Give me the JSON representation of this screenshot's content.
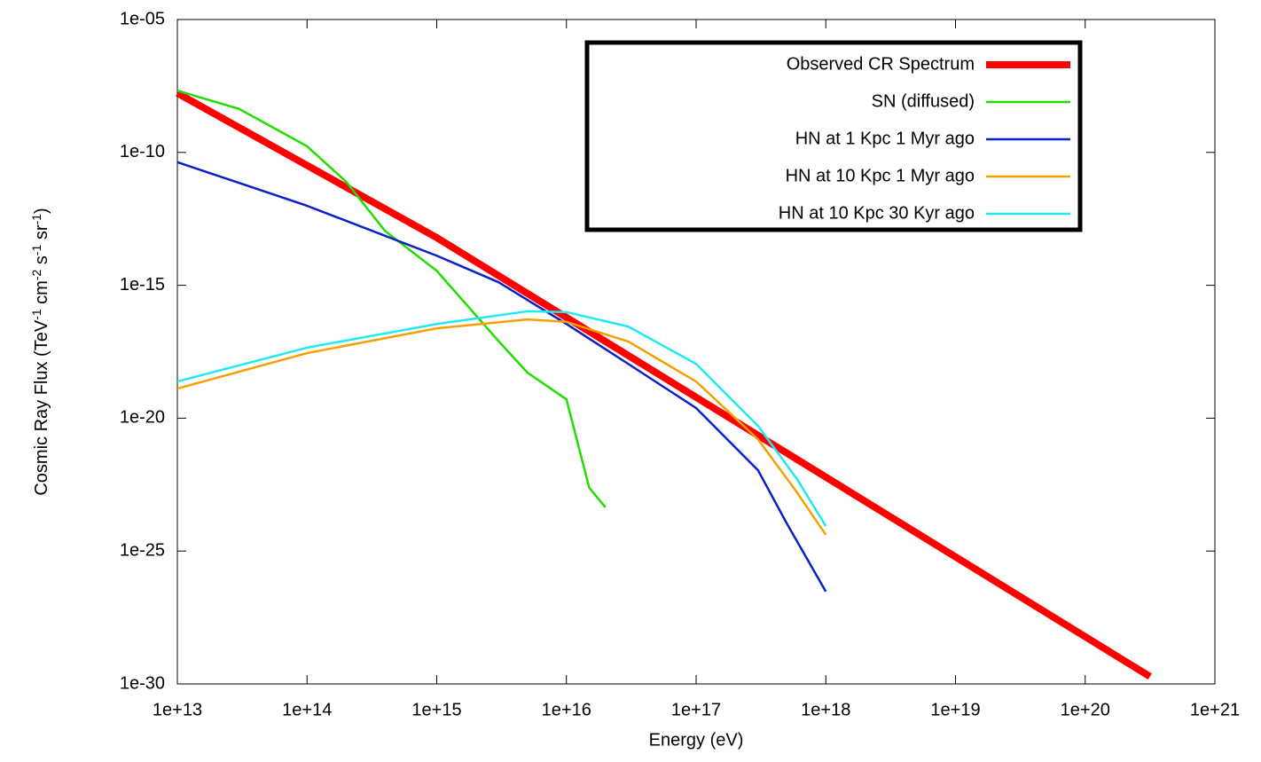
{
  "chart_data": {
    "type": "line",
    "xlabel": "Energy (eV)",
    "ylabel": [
      "Cosmic Ray Flux (TeV",
      "-1",
      " cm",
      "-2",
      " s",
      "-1",
      " sr",
      "-1",
      ")"
    ],
    "xscale": "log",
    "yscale": "log",
    "xlim": [
      10000000000000.0,
      1e+21
    ],
    "ylim": [
      1e-30,
      1e-05
    ],
    "xticks": [
      {
        "value": 10000000000000.0,
        "label": "1e+13"
      },
      {
        "value": 100000000000000.0,
        "label": "1e+14"
      },
      {
        "value": 1000000000000000.0,
        "label": "1e+15"
      },
      {
        "value": 1e+16,
        "label": "1e+16"
      },
      {
        "value": 1e+17,
        "label": "1e+17"
      },
      {
        "value": 1e+18,
        "label": "1e+18"
      },
      {
        "value": 1e+19,
        "label": "1e+19"
      },
      {
        "value": 1e+20,
        "label": "1e+20"
      },
      {
        "value": 1e+21,
        "label": "1e+21"
      }
    ],
    "yticks": [
      {
        "value": 1e-30,
        "label": "1e-30"
      },
      {
        "value": 1e-25,
        "label": "1e-25"
      },
      {
        "value": 1e-20,
        "label": "1e-20"
      },
      {
        "value": 1e-15,
        "label": "1e-15"
      },
      {
        "value": 1e-10,
        "label": "1e-10"
      },
      {
        "value": 1e-05,
        "label": "1e-05"
      }
    ],
    "legend": "top right",
    "series": [
      {
        "name": "Observed CR Spectrum",
        "color": "#ff0000",
        "width": 8,
        "x": [
          10000000000000.0,
          1000000000000000.0,
          3.16e+20
        ],
        "values": [
          1.7e-08,
          6.2e-14,
          1.9e-30
        ]
      },
      {
        "name": "SN (diffused)",
        "color": "#22dd00",
        "width": 2.5,
        "x": [
          10000000000000.0,
          30000000000000.0,
          100000000000000.0,
          200000000000000.0,
          400000000000000.0,
          1000000000000000.0,
          3000000000000000.0,
          5000000000000000.0,
          1e+16,
          1.5e+16,
          2e+16
        ],
        "values": [
          2.1e-08,
          4.3e-09,
          1.7e-10,
          7.9e-12,
          1.1e-13,
          3.5e-15,
          7.9e-18,
          5.2e-19,
          5.1e-20,
          2.4e-23,
          4.4e-24
        ]
      },
      {
        "name": "HN at 1 Kpc 1 Myr ago",
        "color": "#0a1fc8",
        "width": 2.5,
        "x": [
          10000000000000.0,
          100000000000000.0,
          1000000000000000.0,
          3000000000000000.0,
          1e+16,
          3e+16,
          1e+17,
          3e+17,
          5e+17,
          1e+18
        ],
        "values": [
          4.3e-11,
          9.8e-13,
          1.3e-14,
          1.3e-15,
          3.5e-17,
          1.1e-18,
          2.4e-20,
          1.1e-22,
          1.1e-24,
          3e-27
        ]
      },
      {
        "name": "HN at 10 Kpc 1 Myr ago",
        "color": "#f5a000",
        "width": 2.5,
        "x": [
          10000000000000.0,
          100000000000000.0,
          1000000000000000.0,
          5000000000000000.0,
          1e+16,
          3e+16,
          1e+17,
          3e+17,
          6e+17,
          1e+18
        ],
        "values": [
          1.3e-19,
          2.8e-18,
          2.4e-17,
          5.2e-17,
          4.2e-17,
          7.6e-18,
          2.4e-19,
          1.6e-21,
          1.6e-23,
          4.1e-25
        ]
      },
      {
        "name": "HN at 10 Kpc 30 Kyr ago",
        "color": "#22e8f0",
        "width": 2.5,
        "x": [
          10000000000000.0,
          100000000000000.0,
          1000000000000000.0,
          5000000000000000.0,
          1e+16,
          3e+16,
          1e+17,
          3e+17,
          6e+17,
          1e+18
        ],
        "values": [
          2.4e-19,
          4.5e-18,
          3.5e-17,
          1.05e-16,
          9.8e-17,
          2.8e-17,
          1.1e-18,
          5.1e-21,
          5.1e-23,
          8.7e-25
        ]
      }
    ]
  }
}
